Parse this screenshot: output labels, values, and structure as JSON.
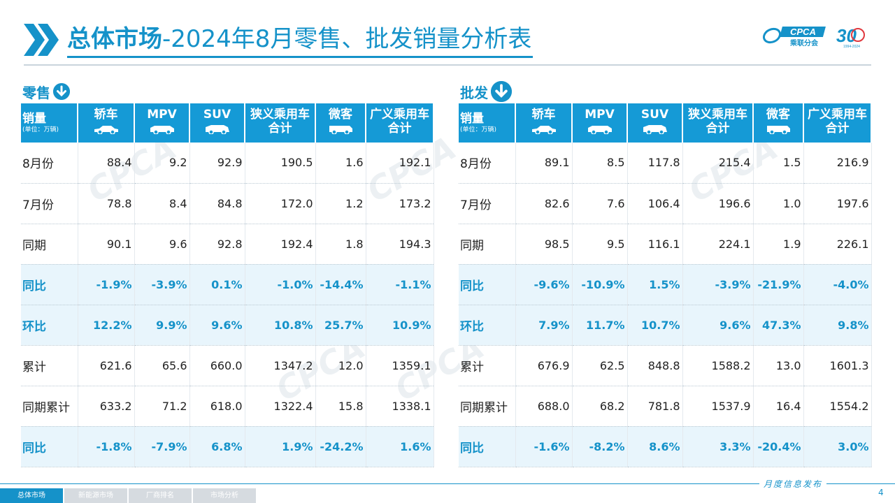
{
  "header": {
    "title_bold": "总体市场",
    "title_rest": "-2024年8月零售、批发销量分析表",
    "logo_text": "CPCA",
    "logo_sub": "乘联分会",
    "anniv_text": "30",
    "anniv_sub": "1994-2024"
  },
  "retail": {
    "section_label": "零售",
    "columns": {
      "first_main": "销量",
      "first_unit": "(单位：万辆)",
      "c1": "轿车",
      "c2": "MPV",
      "c3": "SUV",
      "c4": "狭义乘用车合计",
      "c5": "微客",
      "c6": "广义乘用车合计"
    },
    "rows": [
      {
        "label": "8月份",
        "v": [
          "88.4",
          "9.2",
          "92.9",
          "190.5",
          "1.6",
          "192.1"
        ]
      },
      {
        "label": "7月份",
        "v": [
          "78.8",
          "8.4",
          "84.8",
          "172.0",
          "1.2",
          "173.2"
        ]
      },
      {
        "label": "同期",
        "v": [
          "90.1",
          "9.6",
          "92.8",
          "192.4",
          "1.8",
          "194.3"
        ]
      },
      {
        "label": "同比",
        "v": [
          "-1.9%",
          "-3.9%",
          "0.1%",
          "-1.0%",
          "-14.4%",
          "-1.1%"
        ]
      },
      {
        "label": "环比",
        "v": [
          "12.2%",
          "9.9%",
          "9.6%",
          "10.8%",
          "25.7%",
          "10.9%"
        ]
      },
      {
        "label": "累计",
        "v": [
          "621.6",
          "65.6",
          "660.0",
          "1347.2",
          "12.0",
          "1359.1"
        ]
      },
      {
        "label": "同期累计",
        "v": [
          "633.2",
          "71.2",
          "618.0",
          "1322.4",
          "15.8",
          "1338.1"
        ]
      },
      {
        "label": "同比",
        "v": [
          "-1.8%",
          "-7.9%",
          "6.8%",
          "1.9%",
          "-24.2%",
          "1.6%"
        ]
      }
    ]
  },
  "wholesale": {
    "section_label": "批发",
    "columns": {
      "first_main": "销量",
      "first_unit": "(单位：万辆)",
      "c1": "轿车",
      "c2": "MPV",
      "c3": "SUV",
      "c4": "狭义乘用车合计",
      "c5": "微客",
      "c6": "广义乘用车合计"
    },
    "rows": [
      {
        "label": "8月份",
        "v": [
          "89.1",
          "8.5",
          "117.8",
          "215.4",
          "1.5",
          "216.9"
        ]
      },
      {
        "label": "7月份",
        "v": [
          "82.6",
          "7.6",
          "106.4",
          "196.6",
          "1.0",
          "197.6"
        ]
      },
      {
        "label": "同期",
        "v": [
          "98.5",
          "9.5",
          "116.1",
          "224.1",
          "1.9",
          "226.1"
        ]
      },
      {
        "label": "同比",
        "v": [
          "-9.6%",
          "-10.9%",
          "1.5%",
          "-3.9%",
          "-21.9%",
          "-4.0%"
        ]
      },
      {
        "label": "环比",
        "v": [
          "7.9%",
          "11.7%",
          "10.7%",
          "9.6%",
          "47.3%",
          "9.8%"
        ]
      },
      {
        "label": "累计",
        "v": [
          "676.9",
          "62.5",
          "848.8",
          "1588.2",
          "13.0",
          "1601.3"
        ]
      },
      {
        "label": "同期累计",
        "v": [
          "688.0",
          "68.2",
          "781.8",
          "1537.9",
          "16.4",
          "1554.2"
        ]
      },
      {
        "label": "同比",
        "v": [
          "-1.6%",
          "-8.2%",
          "8.6%",
          "3.3%",
          "-20.4%",
          "3.0%"
        ]
      }
    ]
  },
  "footer": {
    "tabs": [
      "总体市场",
      "新能源市场",
      "厂商排名",
      "市场分析"
    ],
    "note": "月度信息发布",
    "page_number": "4"
  },
  "colors": {
    "accent": "#1592c9",
    "header_fill": "#159ad6",
    "pct_row_fill": "#e8f5fc"
  },
  "icons": [
    "double-chevron-icon",
    "down-arrow-circle-icon",
    "sedan-icon",
    "mpv-icon",
    "suv-icon",
    "minivan-icon"
  ]
}
